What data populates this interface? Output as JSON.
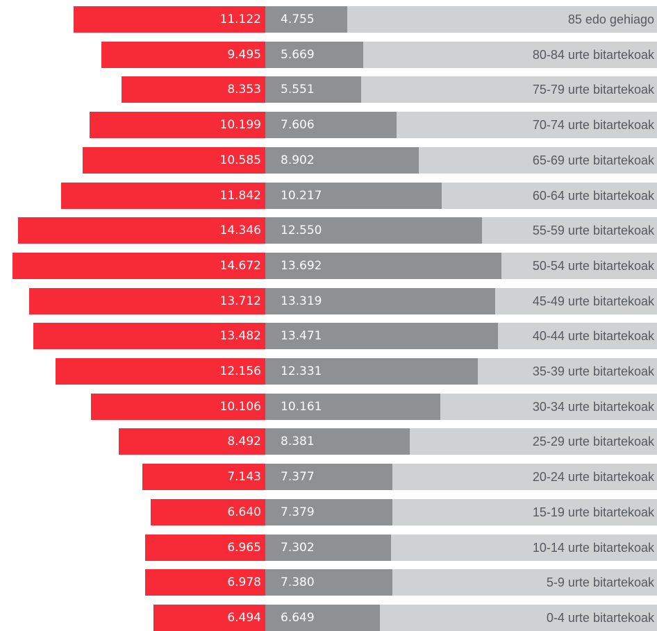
{
  "chart_data": {
    "type": "bar",
    "orientation": "horizontal-diverging",
    "title": "",
    "xlabel": "",
    "ylabel": "",
    "colors": {
      "left_series": "#f72a38",
      "right_series": "#8f9092",
      "track": "#d0d1d3",
      "label_text": "#555a60"
    },
    "categories": [
      "85 edo gehiago",
      "80-84 urte bitartekoak",
      "75-79 urte bitartekoak",
      "70-74 urte bitartekoak",
      "65-69 urte bitartekoak",
      "60-64 urte bitartekoak",
      "55-59 urte bitartekoak",
      "50-54 urte bitartekoak",
      "45-49 urte bitartekoak",
      "40-44 urte bitartekoak",
      "35-39 urte bitartekoak",
      "30-34 urte bitartekoak",
      "25-29 urte bitartekoak",
      "20-24 urte bitartekoak",
      "15-19 urte bitartekoak",
      "10-14 urte bitartekoak",
      "5-9 urte bitartekoak",
      "0-4 urte bitartekoak"
    ],
    "series": [
      {
        "values": [
          11122,
          9495,
          8353,
          10199,
          10585,
          11842,
          14346,
          14672,
          13712,
          13482,
          12156,
          10106,
          8492,
          7143,
          6640,
          6965,
          6978,
          6494
        ],
        "labels": [
          "11.122",
          "9.495",
          "8.353",
          "10.199",
          "10.585",
          "11.842",
          "14.346",
          "14.672",
          "13.712",
          "13.482",
          "12.156",
          "10.106",
          "8.492",
          "7.143",
          "6.640",
          "6.965",
          "6.978",
          "6.494"
        ]
      },
      {
        "values": [
          4755,
          5669,
          5551,
          7606,
          8902,
          10217,
          12550,
          13692,
          13319,
          13471,
          12331,
          10161,
          8381,
          7377,
          7379,
          7302,
          7380,
          6649
        ],
        "labels": [
          "4.755",
          "5.669",
          "5.551",
          "7.606",
          "8.902",
          "10.217",
          "12.550",
          "13.692",
          "13.319",
          "13.471",
          "12.331",
          "10.161",
          "8.381",
          "7.377",
          "7.379",
          "7.302",
          "7.380",
          "6.649"
        ]
      }
    ]
  }
}
